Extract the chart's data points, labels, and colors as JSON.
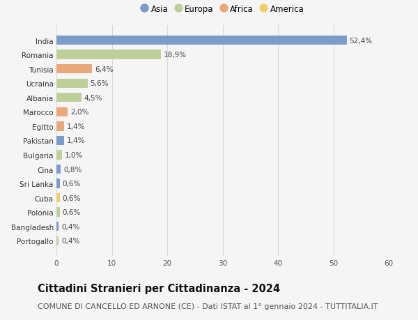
{
  "countries": [
    "India",
    "Romania",
    "Tunisia",
    "Ucraina",
    "Albania",
    "Marocco",
    "Egitto",
    "Pakistan",
    "Bulgaria",
    "Cina",
    "Sri Lanka",
    "Cuba",
    "Polonia",
    "Bangladesh",
    "Portogallo"
  ],
  "values": [
    52.4,
    18.9,
    6.4,
    5.6,
    4.5,
    2.0,
    1.4,
    1.4,
    1.0,
    0.8,
    0.6,
    0.6,
    0.6,
    0.4,
    0.4
  ],
  "labels": [
    "52,4%",
    "18,9%",
    "6,4%",
    "5,6%",
    "4,5%",
    "2,0%",
    "1,4%",
    "1,4%",
    "1,0%",
    "0,8%",
    "0,6%",
    "0,6%",
    "0,6%",
    "0,4%",
    "0,4%"
  ],
  "continents": [
    "Asia",
    "Europa",
    "Africa",
    "Europa",
    "Europa",
    "Africa",
    "Africa",
    "Asia",
    "Europa",
    "Asia",
    "Asia",
    "America",
    "Europa",
    "Asia",
    "Europa"
  ],
  "continent_colors": {
    "Asia": "#7b9cc9",
    "Europa": "#bfcf9a",
    "Africa": "#e8a87c",
    "America": "#f0ce70"
  },
  "legend_order": [
    "Asia",
    "Europa",
    "Africa",
    "America"
  ],
  "title": "Cittadini Stranieri per Cittadinanza - 2024",
  "subtitle": "COMUNE DI CANCELLO ED ARNONE (CE) - Dati ISTAT al 1° gennaio 2024 - TUTTITALIA.IT",
  "xlim": [
    0,
    60
  ],
  "xticks": [
    0,
    10,
    20,
    30,
    40,
    50,
    60
  ],
  "background_color": "#f5f5f5",
  "grid_color": "#d8d8d8",
  "bar_height": 0.65,
  "title_fontsize": 10.5,
  "subtitle_fontsize": 8,
  "label_fontsize": 7.5,
  "tick_fontsize": 7.5,
  "legend_fontsize": 8.5
}
